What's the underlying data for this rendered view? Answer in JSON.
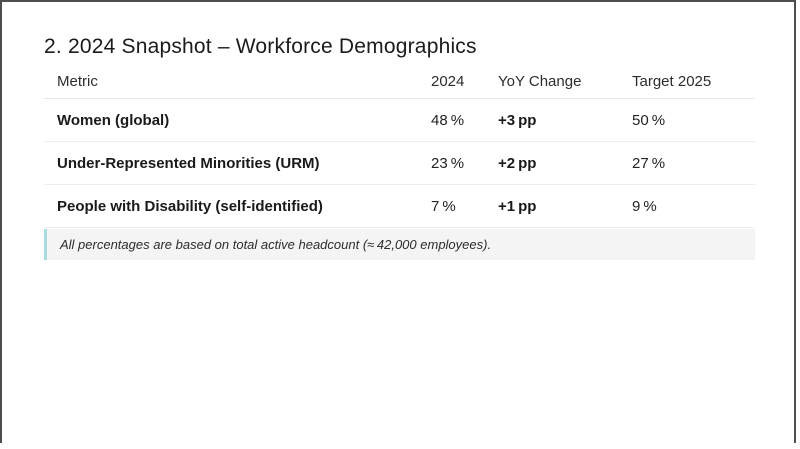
{
  "slide": {
    "title": "2. 2024 Snapshot – Workforce Demographics"
  },
  "table": {
    "columns": [
      "Metric",
      "2024",
      "YoY Change",
      "Target 2025"
    ],
    "rows": [
      {
        "metric": "Women (global)",
        "value_2024": "48 %",
        "yoy": "+3 pp",
        "target_2025": "50 %"
      },
      {
        "metric": "Under-Represented Minorities (URM)",
        "value_2024": "23 %",
        "yoy": "+2 pp",
        "target_2025": "27 %"
      },
      {
        "metric": "People with Disability (self-identified)",
        "value_2024": "7 %",
        "yoy": "+1 pp",
        "target_2025": "9 %"
      }
    ]
  },
  "footnote": {
    "text": "All percentages are based on total active headcount (≈ 42,000 employees)."
  },
  "colors": {
    "frame_border": "#4e4e4e",
    "row_border": "#ededed",
    "footnote_background": "#f4f4f4",
    "footnote_accent": "#a8dae2",
    "text": "#1c1c1c"
  }
}
